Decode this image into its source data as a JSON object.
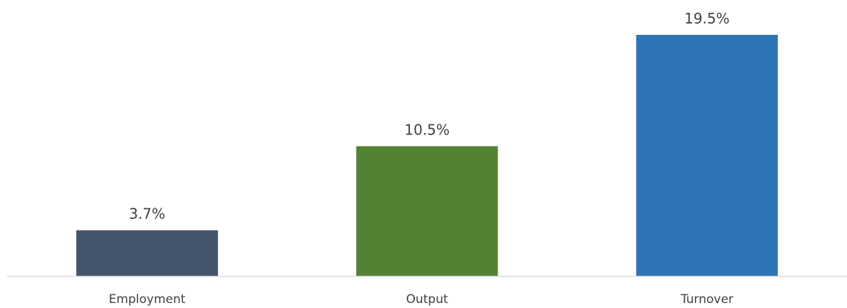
{
  "chart_data": {
    "type": "bar",
    "categories": [
      "Employment",
      "Output",
      "Turnover"
    ],
    "values": [
      3.7,
      10.5,
      19.5
    ],
    "data_labels": [
      "3.7%",
      "10.5%",
      "19.5%"
    ],
    "colors": [
      "#44546A",
      "#548235",
      "#2E75B6"
    ],
    "axis_line_color": "#D9D9D9",
    "label_color": "#404040",
    "title": "",
    "xlabel": "",
    "ylabel": "",
    "ylim": [
      0,
      19.5
    ],
    "grid": false,
    "legend": "none"
  }
}
